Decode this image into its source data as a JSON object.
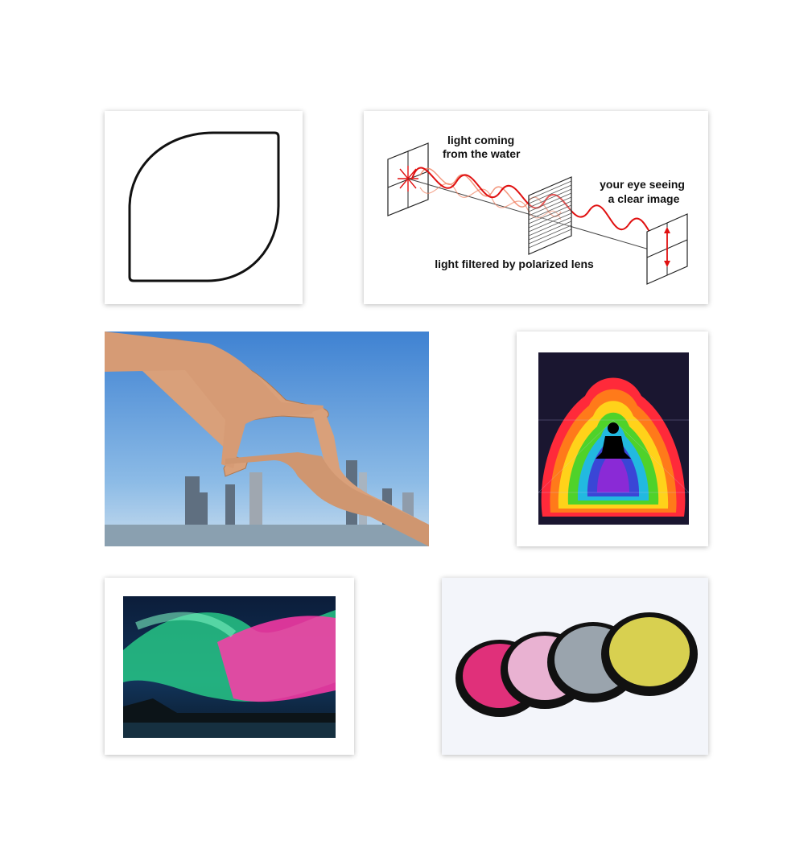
{
  "board": {
    "background": "#ffffff"
  },
  "cards": [
    {
      "name": "leaf-shape-card",
      "icon": "leaf-shape-icon"
    },
    {
      "name": "polarization-diagram-card",
      "labels": {
        "light_source": "light coming\nfrom the water",
        "light_source_line1": "light coming",
        "light_source_line2": "from the water",
        "eye": "your eye seeing\na clear image",
        "eye_line1": "your eye seeing",
        "eye_line2": "a clear image",
        "filter": "light filtered by polarized lens"
      },
      "colors": {
        "wave": "#e01010",
        "wave_faint": "#f08060"
      }
    },
    {
      "name": "hands-frame-photo-card"
    },
    {
      "name": "aura-meditation-art-card"
    },
    {
      "name": "aurora-photo-card"
    },
    {
      "name": "color-filters-photo-card",
      "colors": [
        "#e0307a",
        "#e9b2d2",
        "#9aa4ad",
        "#d8d050"
      ]
    }
  ]
}
